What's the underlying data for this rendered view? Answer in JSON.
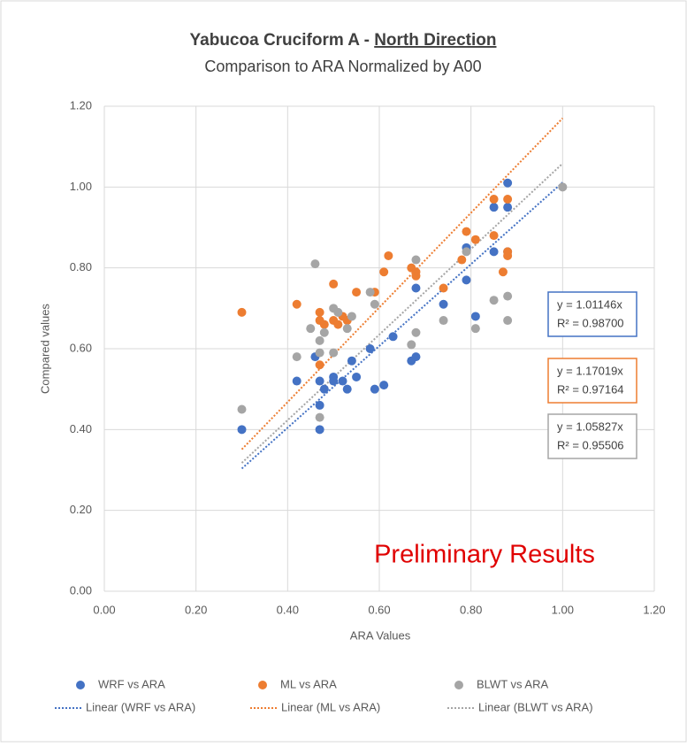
{
  "chart_data": {
    "type": "scatter",
    "title": "Yabucoa Cruciform A - ",
    "title_underlined": "North Direction",
    "subtitle": "Comparison to ARA Normalized by A00",
    "x_label": "ARA Values",
    "y_label": "Compared values",
    "annotation": "Preliminary Results",
    "xlim": [
      0,
      1.2
    ],
    "ylim": [
      0,
      1.2
    ],
    "xticks": [
      {
        "value": 0,
        "label": "0.00"
      },
      {
        "value": 0.2,
        "label": "0.20"
      },
      {
        "value": 0.4,
        "label": "0.40"
      },
      {
        "value": 0.6,
        "label": "0.60"
      },
      {
        "value": 0.8,
        "label": "0.80"
      },
      {
        "value": 1,
        "label": "1.00"
      },
      {
        "value": 1.2,
        "label": "1.20"
      }
    ],
    "yticks": [
      {
        "value": 0,
        "label": "0.00"
      },
      {
        "value": 0.2,
        "label": "0.20"
      },
      {
        "value": 0.4,
        "label": "0.40"
      },
      {
        "value": 0.6,
        "label": "0.60"
      },
      {
        "value": 0.8,
        "label": "0.80"
      },
      {
        "value": 1,
        "label": "1.00"
      },
      {
        "value": 1.2,
        "label": "1.20"
      }
    ],
    "grid": true,
    "series": [
      {
        "name": "WRF vs ARA",
        "color": "#4472c4",
        "x": [
          0.3,
          0.42,
          0.46,
          0.47,
          0.47,
          0.47,
          0.48,
          0.5,
          0.5,
          0.52,
          0.53,
          0.54,
          0.55,
          0.58,
          0.59,
          0.61,
          0.63,
          0.67,
          0.68,
          0.68,
          0.74,
          0.79,
          0.79,
          0.81,
          0.85,
          0.85,
          0.88,
          0.88,
          0.88
        ],
        "values": [
          0.4,
          0.52,
          0.58,
          0.4,
          0.46,
          0.52,
          0.5,
          0.52,
          0.53,
          0.52,
          0.5,
          0.57,
          0.53,
          0.6,
          0.5,
          0.51,
          0.63,
          0.57,
          0.58,
          0.75,
          0.71,
          0.85,
          0.77,
          0.68,
          0.95,
          0.84,
          1.01,
          0.95,
          0.84
        ]
      },
      {
        "name": "ML vs ARA",
        "color": "#ed7d31",
        "x": [
          0.3,
          0.42,
          0.47,
          0.47,
          0.47,
          0.48,
          0.5,
          0.5,
          0.51,
          0.52,
          0.53,
          0.55,
          0.59,
          0.61,
          0.62,
          0.67,
          0.68,
          0.68,
          0.74,
          0.78,
          0.79,
          0.81,
          0.85,
          0.85,
          0.87,
          0.88,
          0.88,
          0.88
        ],
        "values": [
          0.69,
          0.71,
          0.56,
          0.69,
          0.67,
          0.66,
          0.76,
          0.67,
          0.66,
          0.68,
          0.67,
          0.74,
          0.74,
          0.79,
          0.83,
          0.8,
          0.78,
          0.79,
          0.75,
          0.82,
          0.89,
          0.87,
          0.97,
          0.88,
          0.79,
          0.83,
          0.97,
          0.84
        ]
      },
      {
        "name": "BLWT vs ARA",
        "color": "#a5a5a5",
        "x": [
          0.3,
          0.42,
          0.45,
          0.46,
          0.47,
          0.47,
          0.47,
          0.48,
          0.5,
          0.5,
          0.51,
          0.53,
          0.54,
          0.58,
          0.59,
          0.67,
          0.68,
          0.68,
          0.74,
          0.79,
          0.81,
          0.85,
          0.88,
          0.88,
          1.0
        ],
        "values": [
          0.45,
          0.58,
          0.65,
          0.81,
          0.43,
          0.59,
          0.62,
          0.64,
          0.7,
          0.59,
          0.69,
          0.65,
          0.68,
          0.74,
          0.71,
          0.61,
          0.64,
          0.82,
          0.67,
          0.84,
          0.65,
          0.72,
          0.73,
          0.67,
          1.0
        ]
      }
    ],
    "trendlines": [
      {
        "name": "Linear (WRF vs ARA)",
        "color": "#4472c4",
        "slope": 1.01146,
        "equation": "y = 1.01146x",
        "r_squared": "R² = 0.98700"
      },
      {
        "name": "Linear (ML vs ARA)",
        "color": "#ed7d31",
        "slope": 1.17019,
        "equation": "y = 1.17019x",
        "r_squared": "R² = 0.97164"
      },
      {
        "name": "Linear (BLWT vs ARA)",
        "color": "#a5a5a5",
        "slope": 1.05827,
        "equation": "y = 1.05827x",
        "r_squared": "R² = 0.95506"
      }
    ]
  }
}
